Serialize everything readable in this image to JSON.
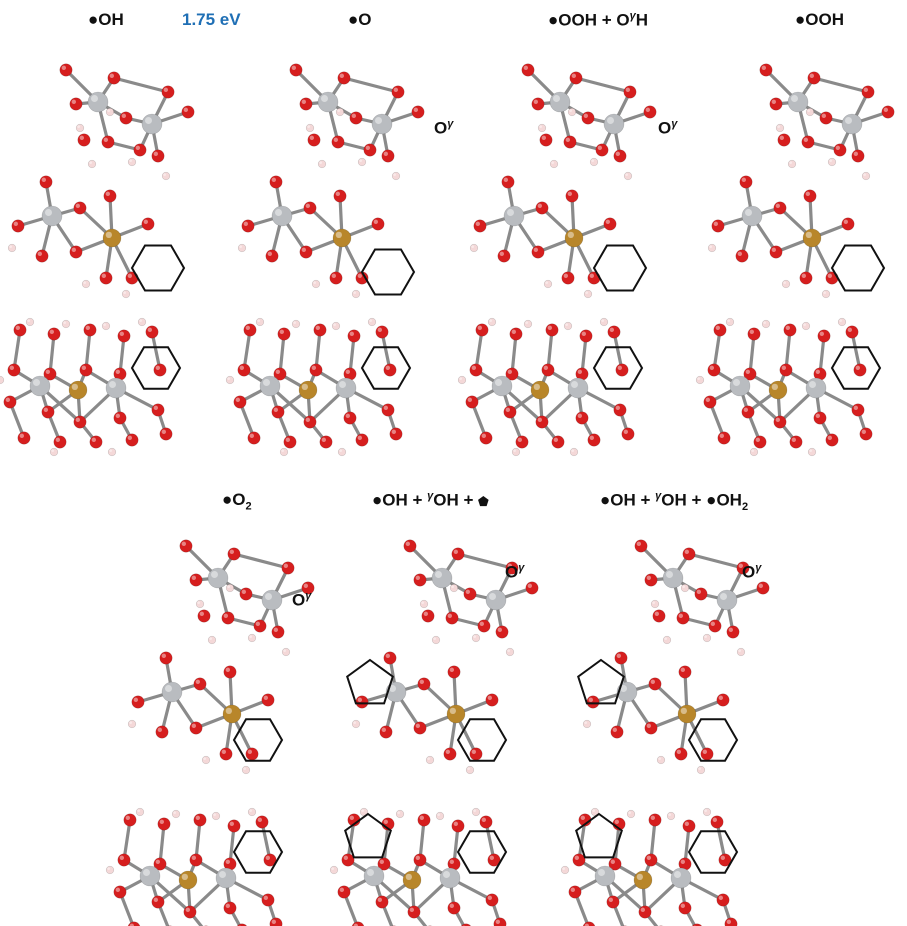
{
  "energy_label": "1.75 eV",
  "energy_color": "#1f6fb5",
  "panels": [
    {
      "title_html": "●OH",
      "ogamma": ""
    },
    {
      "title_html": "●O",
      "ogamma": "O"
    },
    {
      "title_html": "●OOH + OγH",
      "ogamma": "O"
    },
    {
      "title_html": "●OOH",
      "ogamma": ""
    },
    {
      "title_html": "●O2",
      "ogamma": "O"
    },
    {
      "title_html": "●OH + γOH + ⬟",
      "ogamma": "O"
    },
    {
      "title_html": "●OH + γOH + ●OH2",
      "ogamma": "O"
    }
  ],
  "ogamma_sup": "γ",
  "colors": {
    "oxygen": "#d61e1e",
    "metal": "#b9bcc0",
    "dopant": "#b8862a",
    "hydrogen": "#f4d8d8",
    "bond": "#8a8a8a"
  }
}
